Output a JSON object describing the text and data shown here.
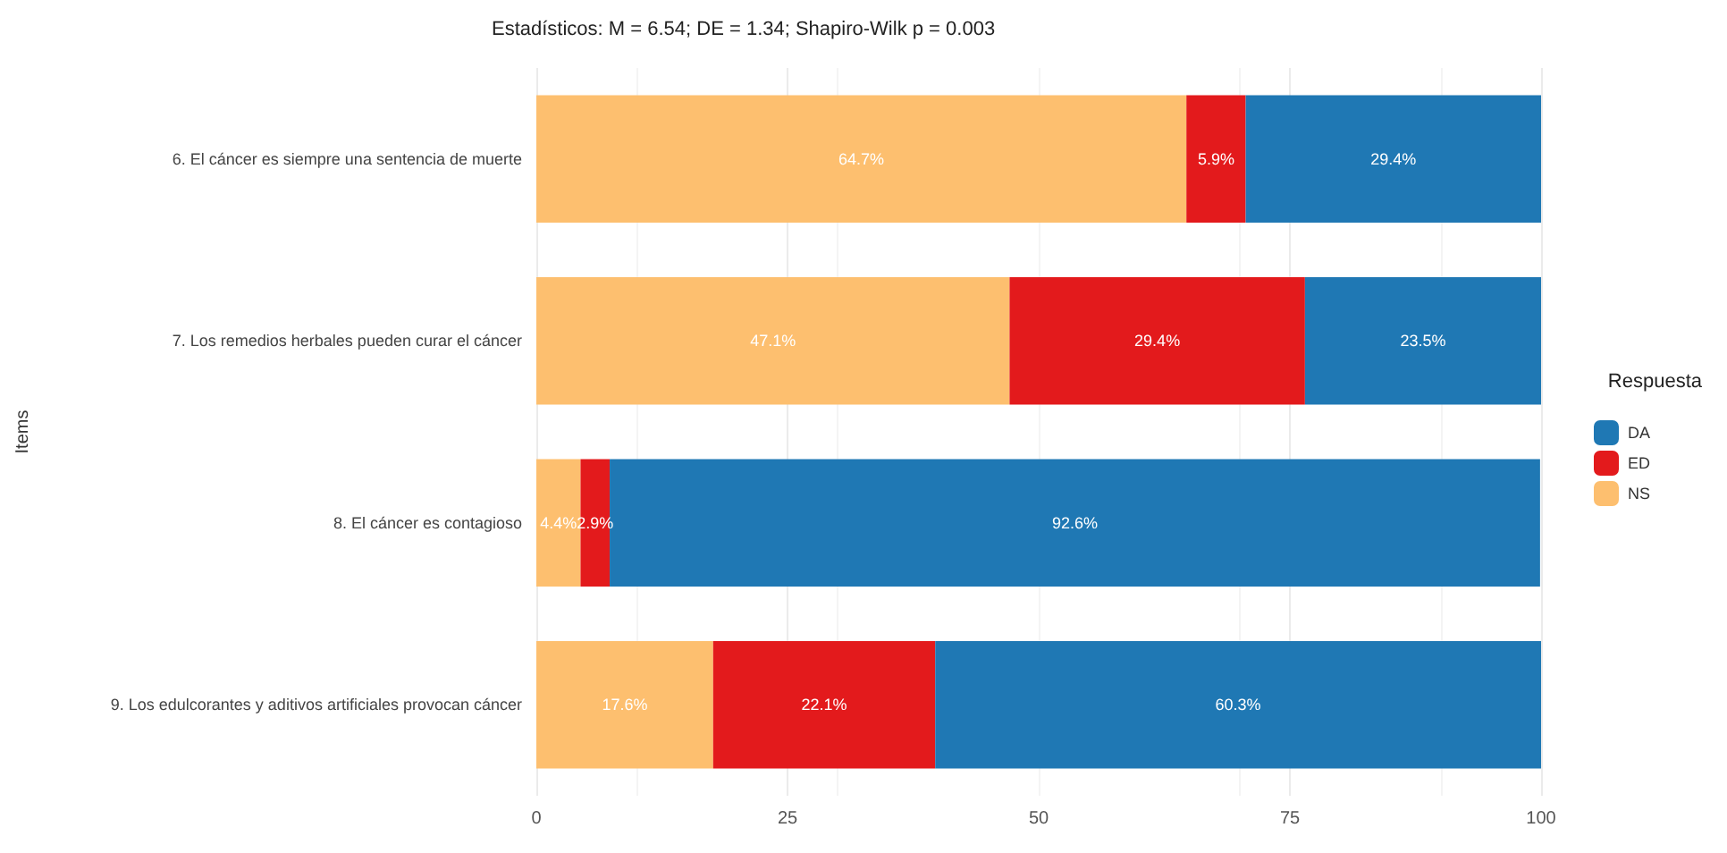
{
  "chart_data": {
    "type": "bar",
    "orientation": "horizontal",
    "stacked": true,
    "title": "Estadísticos: M = 6.54; DE = 1.34; Shapiro-Wilk p = 0.003",
    "ylabel": "Items",
    "legend_title": "Respuesta",
    "categories": [
      "6. El cáncer es siempre una sentencia de muerte",
      "7. Los remedios herbales pueden curar el cáncer",
      "8. El cáncer es contagioso",
      "9. Los edulcorantes y aditivos artificiales provocan cáncer"
    ],
    "series": [
      {
        "name": "NS",
        "color": "#fdbf6f",
        "values": [
          64.7,
          47.1,
          4.4,
          17.6
        ],
        "value_labels": [
          "64.7%",
          "47.1%",
          "4.4%",
          "17.6%"
        ]
      },
      {
        "name": "ED",
        "color": "#e31a1c",
        "values": [
          5.9,
          29.4,
          2.9,
          22.1
        ],
        "value_labels": [
          "5.9%",
          "29.4%",
          "2.9%",
          "22.1%"
        ]
      },
      {
        "name": "DA",
        "color": "#1f78b4",
        "values": [
          29.4,
          23.5,
          92.6,
          60.3
        ],
        "value_labels": [
          "29.4%",
          "23.5%",
          "92.6%",
          "60.3%"
        ]
      }
    ],
    "xlim": [
      0,
      100
    ],
    "xticks": [
      0,
      25,
      50,
      75,
      100
    ],
    "grid": "x",
    "legend": "right"
  }
}
